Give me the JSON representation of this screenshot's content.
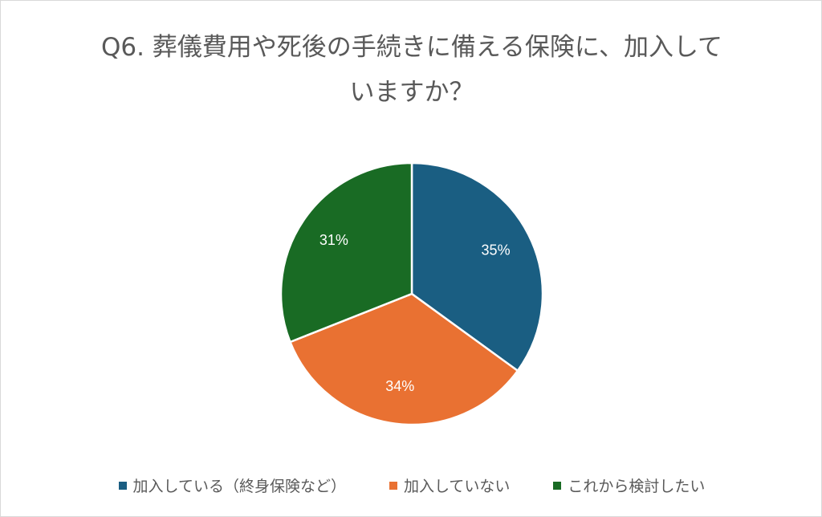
{
  "chart_data": {
    "type": "pie",
    "title": "Q6. 葬儀費用や死後の手続きに備える保険に、加入していますか？",
    "categories": [
      "加入している（終身保険など）",
      "加入していない",
      "これから検討したい"
    ],
    "values": [
      35,
      34,
      31
    ],
    "data_labels": [
      "35%",
      "34%",
      "31%"
    ],
    "colors": [
      "#1a5e82",
      "#e97132",
      "#196b24"
    ],
    "legend_position": "bottom"
  }
}
